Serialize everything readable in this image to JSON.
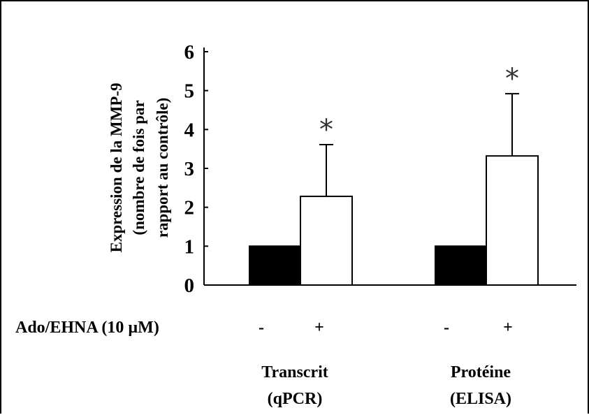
{
  "chart_data": {
    "type": "bar",
    "ylabel_lines": [
      "Expression de  la MMP-9",
      "(nombre de fois par",
      "rapport au contrôle)"
    ],
    "yticks": [
      "0",
      "1",
      "2",
      "3",
      "4",
      "5",
      "6"
    ],
    "ylim": [
      0,
      6
    ],
    "treatment_label": "Ado/EHNA (10 µM)",
    "treatment_symbols": [
      "-",
      "+",
      "-",
      "+"
    ],
    "groups": [
      {
        "label_line1": "Transcrit",
        "label_line2": "(qPCR)"
      },
      {
        "label_line1": "Protéine",
        "label_line2": "(ELISA)"
      }
    ],
    "series": [
      {
        "name": "-",
        "color": "#000000",
        "values": [
          1.0,
          1.0
        ]
      },
      {
        "name": "+",
        "color": "#ffffff",
        "values": [
          2.28,
          3.32
        ],
        "errors": [
          1.33,
          1.6
        ],
        "significance": [
          "*",
          "*"
        ]
      }
    ],
    "grid": false,
    "legend": "none"
  }
}
